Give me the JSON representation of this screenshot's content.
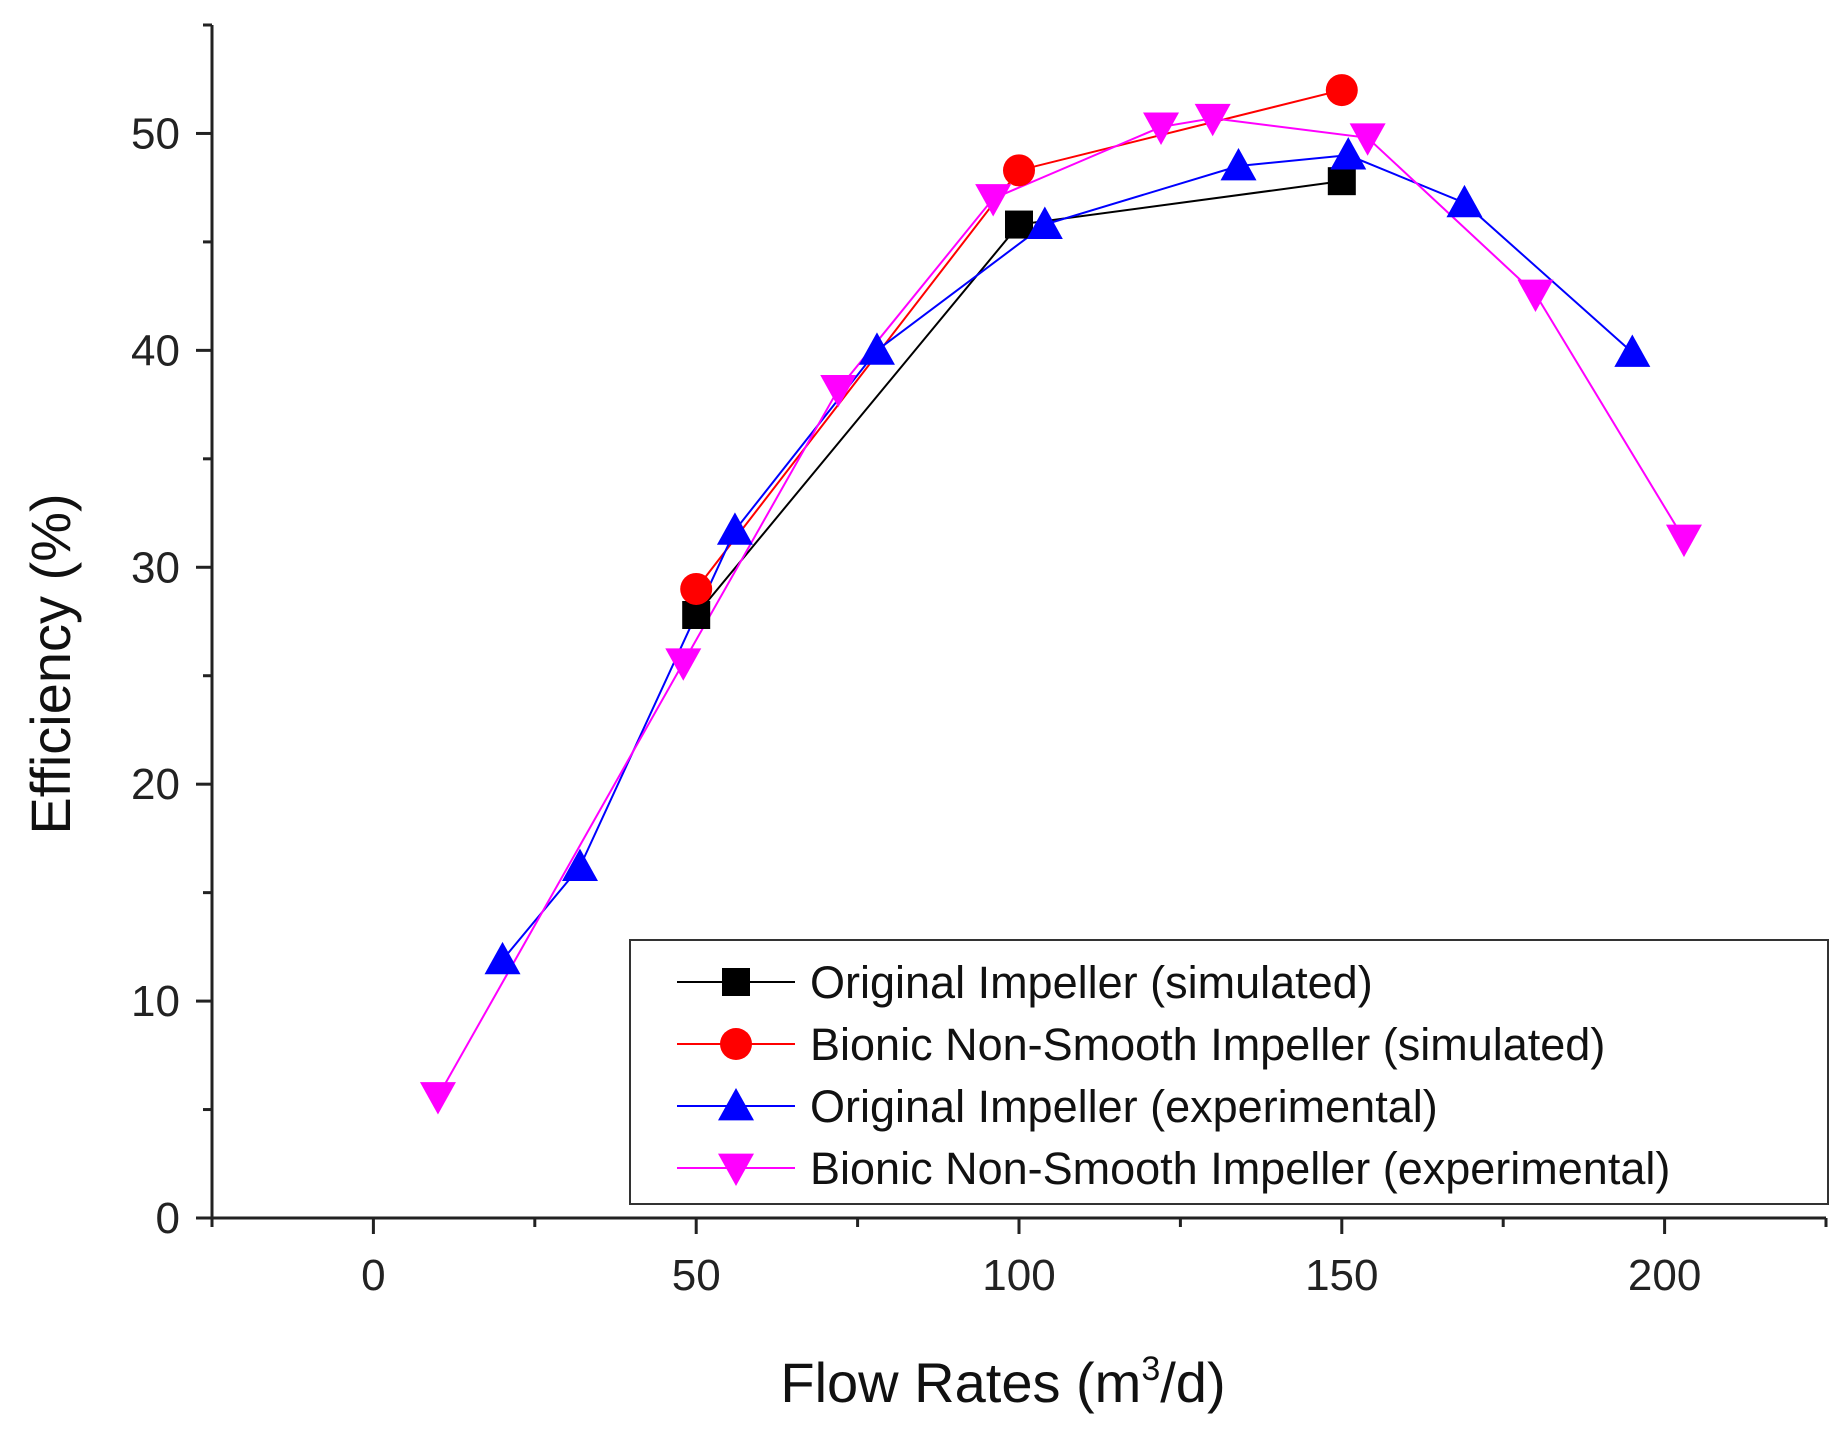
{
  "chart_data": {
    "type": "line",
    "xlabel_prefix": "Flow Rates (m",
    "xlabel_sup": "3",
    "xlabel_suffix": "/d)",
    "ylabel": "Efficiency (%)",
    "xlim": [
      -25,
      225
    ],
    "ylim": [
      0,
      55
    ],
    "xticks": [
      0,
      50,
      100,
      150,
      200
    ],
    "yticks": [
      0,
      10,
      20,
      30,
      40,
      50
    ],
    "legend_position": "bottom-right",
    "series": [
      {
        "name": "Original Impeller (simulated)",
        "color": "#000000",
        "marker": "square",
        "x": [
          50,
          100,
          150
        ],
        "y": [
          27.8,
          45.8,
          47.8
        ]
      },
      {
        "name": "Bionic Non-Smooth Impeller (simulated)",
        "color": "#ff0000",
        "marker": "circle",
        "x": [
          50,
          100,
          150
        ],
        "y": [
          29,
          48.3,
          52
        ]
      },
      {
        "name": "Original Impeller (experimental)",
        "color": "#0000ff",
        "marker": "triangle-up",
        "x": [
          20,
          32,
          56,
          78,
          104,
          134,
          151,
          169,
          195
        ],
        "y": [
          11.9,
          16.2,
          31.7,
          40.0,
          45.8,
          48.5,
          49.0,
          46.8,
          39.9
        ]
      },
      {
        "name": "Bionic Non-Smooth Impeller (experimental)",
        "color": "#ff00ff",
        "marker": "triangle-down",
        "x": [
          10,
          48,
          72,
          96,
          122,
          130,
          154,
          180,
          203
        ],
        "y": [
          5.6,
          25.6,
          38.2,
          47.0,
          50.3,
          50.7,
          49.8,
          42.6,
          31.3
        ]
      }
    ]
  }
}
